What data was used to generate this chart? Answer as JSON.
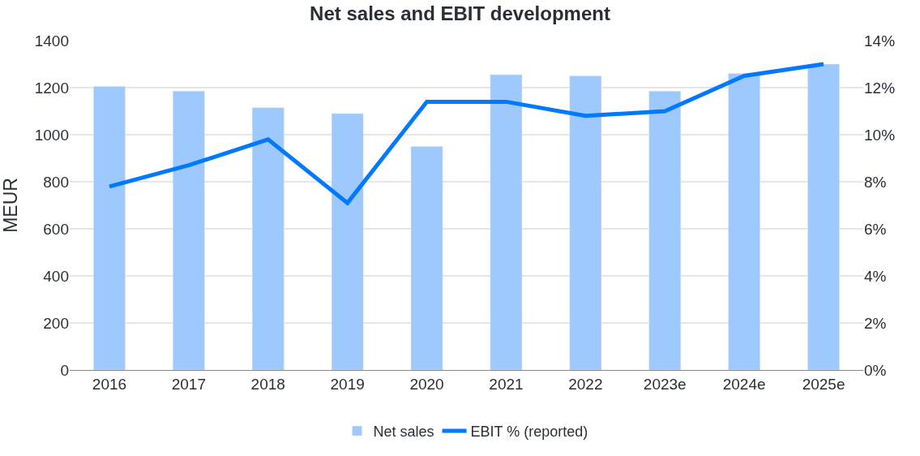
{
  "chart_data": {
    "type": "bar",
    "title": "Net sales and EBIT development",
    "ylabel": "MEUR",
    "categories": [
      "2016",
      "2017",
      "2018",
      "2019",
      "2020",
      "2021",
      "2022",
      "2023e",
      "2024e",
      "2025e"
    ],
    "series": [
      {
        "name": "Net sales",
        "color": "#9dc9ff",
        "values": [
          1205,
          1185,
          1115,
          1090,
          950,
          1255,
          1250,
          1185,
          1260,
          1300
        ]
      },
      {
        "name": "EBIT % (reported)",
        "type": "line",
        "axis": "y2",
        "color": "#0078ff",
        "values": [
          7.8,
          8.7,
          9.8,
          7.1,
          11.4,
          11.4,
          10.8,
          11.0,
          12.5,
          13.0
        ]
      }
    ],
    "ylim": [
      0,
      1400
    ],
    "yticks": [
      0,
      200,
      400,
      600,
      800,
      1000,
      1200,
      1400
    ],
    "y2lim": [
      0,
      14
    ],
    "y2ticks": [
      {
        "value": 0,
        "label": "0%"
      },
      {
        "value": 2,
        "label": "2%"
      },
      {
        "value": 4,
        "label": "4%"
      },
      {
        "value": 6,
        "label": "6%"
      },
      {
        "value": 8,
        "label": "8%"
      },
      {
        "value": 10,
        "label": "10%"
      },
      {
        "value": 12,
        "label": "12%"
      },
      {
        "value": 14,
        "label": "14%"
      }
    ],
    "grid": "y",
    "legend": "bottom",
    "marker": "none",
    "line_style": "solid"
  }
}
